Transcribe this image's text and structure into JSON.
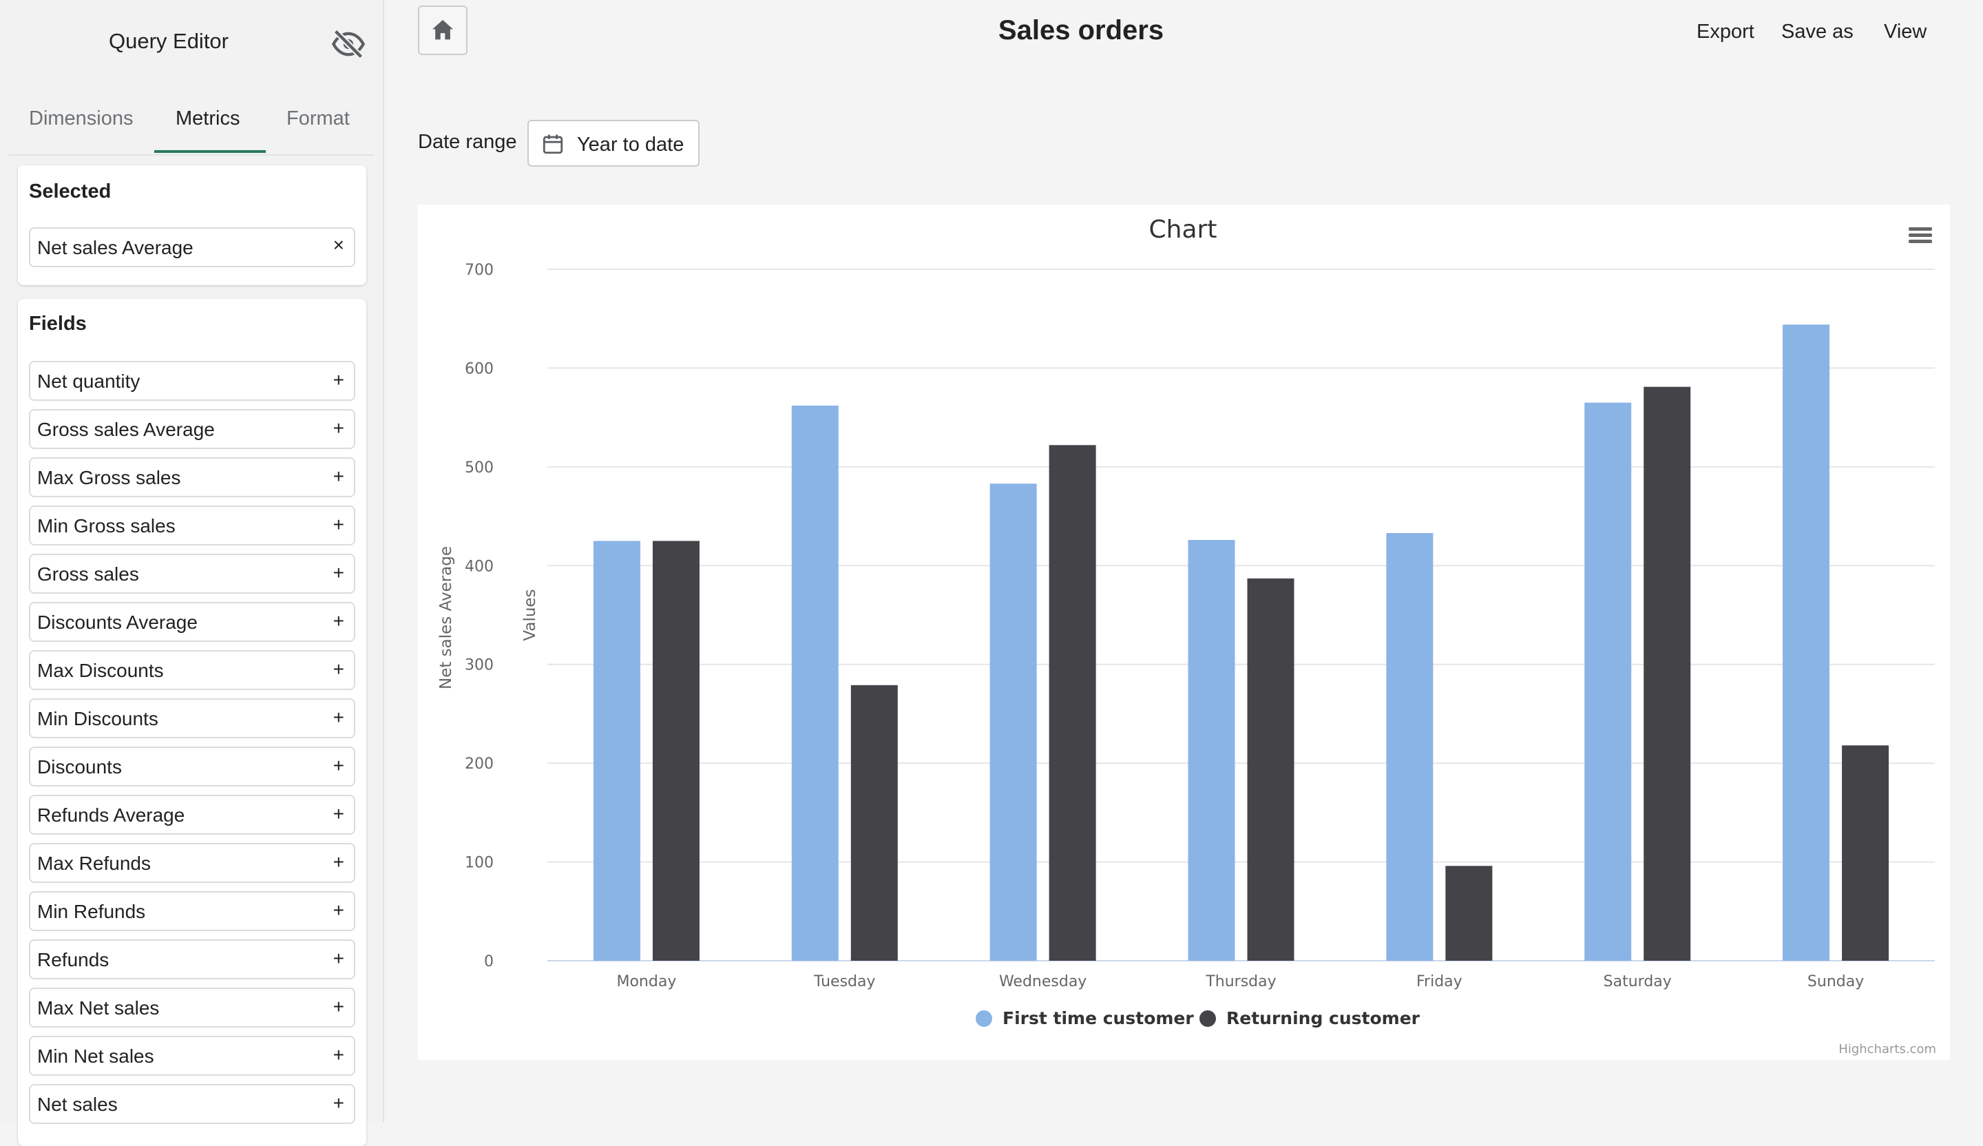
{
  "sidebar": {
    "title": "Query Editor",
    "visibility_icon": "eye-off-icon",
    "tabs": [
      "Dimensions",
      "Metrics",
      "Format"
    ],
    "active_tab": "Metrics",
    "selected": {
      "title": "Selected",
      "items": [
        "Net sales Average"
      ],
      "remove_symbol": "×"
    },
    "fields": {
      "title": "Fields",
      "add_symbol": "+",
      "items": [
        "Net quantity",
        "Gross sales Average",
        "Max Gross sales",
        "Min Gross sales",
        "Gross sales",
        "Discounts Average",
        "Max Discounts",
        "Min Discounts",
        "Discounts",
        "Refunds Average",
        "Max Refunds",
        "Min Refunds",
        "Refunds",
        "Max Net sales",
        "Min Net sales",
        "Net sales"
      ]
    }
  },
  "header": {
    "home_icon": "home-icon",
    "title": "Sales orders",
    "export_label": "Export",
    "save_as_label": "Save as",
    "view_label": "View"
  },
  "filters": {
    "date_range_label": "Date range",
    "date_range_value": "Year to date",
    "calendar_icon": "calendar-icon"
  },
  "chart_data": {
    "type": "bar",
    "title": "Chart",
    "ylabel": "Net sales Average",
    "ylabel_secondary": "Values",
    "xlabel": "",
    "ylim": [
      0,
      700
    ],
    "yticks": [
      0,
      100,
      200,
      300,
      400,
      500,
      600,
      700
    ],
    "grid": true,
    "categories": [
      "Monday",
      "Tuesday",
      "Wednesday",
      "Thursday",
      "Friday",
      "Saturday",
      "Sunday"
    ],
    "series": [
      {
        "name": "First time customer",
        "color": "#8ab4e6",
        "values": [
          425,
          562,
          483,
          426,
          433,
          565,
          644
        ]
      },
      {
        "name": "Returning customer",
        "color": "#434348",
        "values": [
          425,
          279,
          522,
          387,
          96,
          581,
          218
        ]
      }
    ],
    "legend": "bottom-center",
    "credits": "Highcharts.com",
    "menu_icon": "hamburger-menu-icon"
  }
}
